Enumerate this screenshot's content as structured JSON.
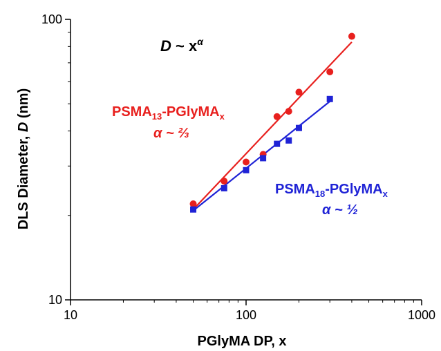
{
  "chart_data": {
    "type": "scatter",
    "x_scale": "log",
    "y_scale": "log",
    "xlim": [
      10,
      1000
    ],
    "ylim": [
      10,
      100
    ],
    "x_ticks": [
      "10",
      "100",
      "1000"
    ],
    "y_ticks": [
      "10",
      "100"
    ],
    "xlabel": "PGlyMA DP, x",
    "ylabel_main": "DLS Diameter, ",
    "ylabel_var": "D",
    "ylabel_unit": " (nm)",
    "grid": false,
    "equation": {
      "lhs": "D",
      "op": " ~ ",
      "base": "x",
      "exp": "α"
    },
    "series": [
      {
        "name_parts": {
          "a": "PSMA",
          "a_sub": "13",
          "b": "-PGlyMA",
          "b_sub": "x"
        },
        "alpha_label": "α ~ ⅔",
        "color": "#e8201e",
        "marker": "circle",
        "x": [
          50,
          75,
          100,
          125,
          150,
          175,
          200,
          300,
          400
        ],
        "y": [
          22,
          26.5,
          31,
          33,
          45,
          47,
          55,
          65,
          87
        ],
        "fit": {
          "x": [
            50,
            400
          ],
          "y": [
            21,
            83
          ]
        }
      },
      {
        "name_parts": {
          "a": "PSMA",
          "a_sub": "18",
          "b": "-PGlyMA",
          "b_sub": "x"
        },
        "alpha_label": "α ~ ½",
        "color": "#1f23d6",
        "marker": "square",
        "x": [
          50,
          75,
          100,
          125,
          150,
          175,
          200,
          300
        ],
        "y": [
          21,
          25,
          29,
          32,
          36,
          37,
          41,
          52
        ],
        "fit": {
          "x": [
            50,
            300
          ],
          "y": [
            20.8,
            51
          ]
        }
      }
    ]
  }
}
